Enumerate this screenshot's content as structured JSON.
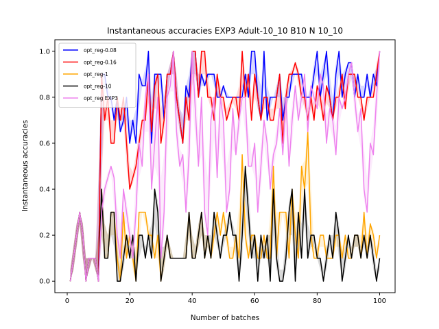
{
  "chart_data": {
    "type": "line",
    "title": "Instantaneous accuracies EXP3 Adult-10_10 B10 N 10_10",
    "xlabel": "Number of batches",
    "ylabel": "Instantaneous accuracies",
    "xlim": [
      -3.95,
      104.95
    ],
    "ylim": [
      -0.05,
      1.05
    ],
    "xticks": [
      0,
      20,
      40,
      60,
      80,
      100
    ],
    "yticks": [
      0.0,
      0.2,
      0.4,
      0.6,
      0.8,
      1.0
    ],
    "grid": false,
    "legend_position": "top-left",
    "x_start": 1,
    "series": [
      {
        "name": "opt_reg-0.08",
        "color": "#0000ff",
        "values": [
          0.0,
          0.1,
          0.2,
          0.3,
          0.2,
          0.0,
          0.1,
          0.1,
          0.1,
          0.0,
          0.9,
          0.9,
          0.8,
          0.8,
          0.7,
          0.8,
          0.65,
          0.7,
          0.8,
          0.6,
          0.7,
          0.6,
          0.9,
          0.85,
          0.85,
          1.0,
          0.6,
          0.9,
          0.9,
          0.9,
          0.7,
          0.9,
          0.9,
          1.0,
          0.8,
          0.7,
          0.6,
          0.85,
          0.8,
          1.0,
          1.0,
          0.8,
          0.9,
          0.85,
          0.9,
          0.9,
          0.9,
          0.8,
          0.8,
          0.85,
          0.8,
          0.8,
          0.8,
          0.8,
          0.8,
          0.8,
          0.9,
          0.8,
          1.0,
          1.0,
          0.8,
          0.7,
          1.0,
          0.7,
          0.8,
          0.8,
          0.8,
          0.9,
          0.7,
          0.8,
          0.8,
          0.9,
          0.9,
          0.9,
          0.9,
          0.8,
          0.8,
          0.8,
          0.9,
          1.0,
          0.8,
          0.9,
          1.0,
          0.8,
          0.7,
          0.9,
          1.0,
          0.8,
          0.9,
          0.95,
          0.95,
          0.8,
          0.9,
          0.8,
          0.8,
          0.9,
          0.8,
          0.9,
          0.85,
          1.0
        ]
      },
      {
        "name": "opt_reg-0.16",
        "color": "#ff0000",
        "values": [
          0.0,
          0.1,
          0.2,
          0.3,
          0.2,
          0.0,
          0.1,
          0.1,
          0.1,
          0.0,
          0.9,
          0.7,
          0.8,
          0.6,
          0.6,
          0.8,
          0.7,
          0.8,
          0.6,
          0.4,
          0.45,
          0.5,
          0.6,
          0.7,
          0.7,
          0.9,
          0.65,
          0.85,
          0.9,
          0.6,
          0.7,
          0.9,
          0.9,
          1.0,
          0.8,
          0.7,
          0.6,
          0.8,
          0.7,
          1.0,
          1.0,
          0.8,
          1.0,
          1.0,
          0.8,
          0.8,
          0.7,
          0.9,
          0.8,
          0.8,
          0.7,
          0.75,
          0.8,
          0.8,
          0.7,
          1.0,
          0.8,
          0.9,
          0.7,
          0.9,
          0.8,
          0.7,
          0.8,
          0.8,
          0.7,
          0.7,
          0.8,
          0.9,
          0.6,
          0.8,
          0.9,
          0.9,
          0.95,
          0.9,
          0.8,
          0.8,
          0.7,
          0.8,
          0.7,
          0.85,
          0.8,
          0.7,
          0.85,
          0.8,
          0.7,
          0.8,
          0.8,
          0.9,
          0.75,
          0.9,
          0.9,
          0.9,
          0.8,
          0.8,
          0.7,
          0.8,
          0.8,
          0.8,
          0.9,
          1.0
        ]
      },
      {
        "name": "opt_reg-1",
        "color": "#ffa500",
        "values": [
          0.0,
          0.1,
          0.2,
          0.3,
          0.2,
          0.0,
          0.1,
          0.1,
          0.1,
          0.0,
          0.4,
          0.1,
          0.1,
          0.3,
          0.3,
          0.1,
          0.0,
          0.3,
          0.1,
          0.2,
          0.1,
          0.0,
          0.3,
          0.3,
          0.3,
          0.2,
          0.2,
          0.1,
          0.2,
          0.0,
          0.1,
          0.2,
          0.1,
          0.1,
          0.1,
          0.1,
          0.1,
          0.1,
          0.3,
          0.1,
          0.1,
          0.2,
          0.3,
          0.1,
          0.2,
          0.1,
          0.2,
          0.3,
          0.2,
          0.3,
          0.2,
          0.1,
          0.1,
          0.2,
          0.1,
          0.55,
          0.2,
          0.1,
          0.2,
          0.2,
          0.1,
          0.1,
          0.2,
          0.1,
          0.1,
          0.5,
          0.1,
          0.3,
          0.3,
          0.3,
          0.1,
          0.4,
          0.2,
          0.1,
          0.5,
          0.4,
          0.65,
          0.2,
          0.1,
          0.1,
          0.2,
          0.2,
          0.1,
          0.1,
          0.1,
          0.2,
          0.2,
          0.1,
          0.2,
          0.1,
          0.1,
          0.2,
          0.2,
          0.1,
          0.3,
          0.1,
          0.25,
          0.2,
          0.1,
          0.2
        ]
      },
      {
        "name": "opt_reg-10",
        "color": "#000000",
        "values": [
          0.0,
          0.1,
          0.2,
          0.3,
          0.2,
          0.0,
          0.1,
          0.1,
          0.1,
          0.0,
          0.4,
          0.1,
          0.1,
          0.3,
          0.3,
          0.0,
          0.0,
          0.1,
          0.2,
          0.1,
          0.2,
          0.0,
          0.2,
          0.2,
          0.1,
          0.2,
          0.1,
          0.4,
          0.3,
          0.0,
          0.1,
          0.2,
          0.1,
          0.1,
          0.1,
          0.1,
          0.1,
          0.1,
          0.3,
          0.1,
          0.1,
          0.2,
          0.3,
          0.1,
          0.2,
          0.1,
          0.3,
          0.2,
          0.1,
          0.2,
          0.2,
          0.3,
          0.2,
          0.2,
          0.0,
          0.2,
          0.5,
          0.3,
          0.1,
          0.2,
          0.0,
          0.2,
          0.1,
          0.2,
          0.0,
          0.4,
          0.1,
          0.0,
          0.0,
          0.1,
          0.3,
          0.4,
          0.0,
          0.3,
          0.1,
          0.4,
          0.1,
          0.2,
          0.2,
          0.1,
          0.1,
          0.0,
          0.1,
          0.2,
          0.1,
          0.3,
          0.2,
          0.0,
          0.1,
          0.2,
          0.1,
          0.2,
          0.2,
          0.1,
          0.2,
          0.1,
          0.2,
          0.1,
          0.0,
          0.1
        ]
      },
      {
        "name": "opt_reg EXP3",
        "color": "#ee82ee",
        "values": [
          0.0,
          0.1,
          0.2,
          0.3,
          0.2,
          0.0,
          0.1,
          0.1,
          0.1,
          0.0,
          0.3,
          0.4,
          0.45,
          0.5,
          0.45,
          0.2,
          0.1,
          0.4,
          0.3,
          0.2,
          0.1,
          0.3,
          0.6,
          0.5,
          0.8,
          0.9,
          0.4,
          0.6,
          0.8,
          0.1,
          0.3,
          0.8,
          0.85,
          1.0,
          0.65,
          0.5,
          0.55,
          0.3,
          0.55,
          1.0,
          0.75,
          0.5,
          0.8,
          0.3,
          0.2,
          0.7,
          0.8,
          0.45,
          0.8,
          0.7,
          0.3,
          0.4,
          0.75,
          0.55,
          0.7,
          0.8,
          0.8,
          0.5,
          0.5,
          0.6,
          0.3,
          0.5,
          0.7,
          0.6,
          0.4,
          0.55,
          0.6,
          0.75,
          0.55,
          0.8,
          0.5,
          0.7,
          0.85,
          0.7,
          0.8,
          0.9,
          0.65,
          0.85,
          0.8,
          0.75,
          0.9,
          0.85,
          0.6,
          0.75,
          0.7,
          0.55,
          0.8,
          0.75,
          0.8,
          0.9,
          0.95,
          0.8,
          0.65,
          0.75,
          0.4,
          0.3,
          0.6,
          0.55,
          0.8,
          1.0
        ]
      }
    ]
  }
}
